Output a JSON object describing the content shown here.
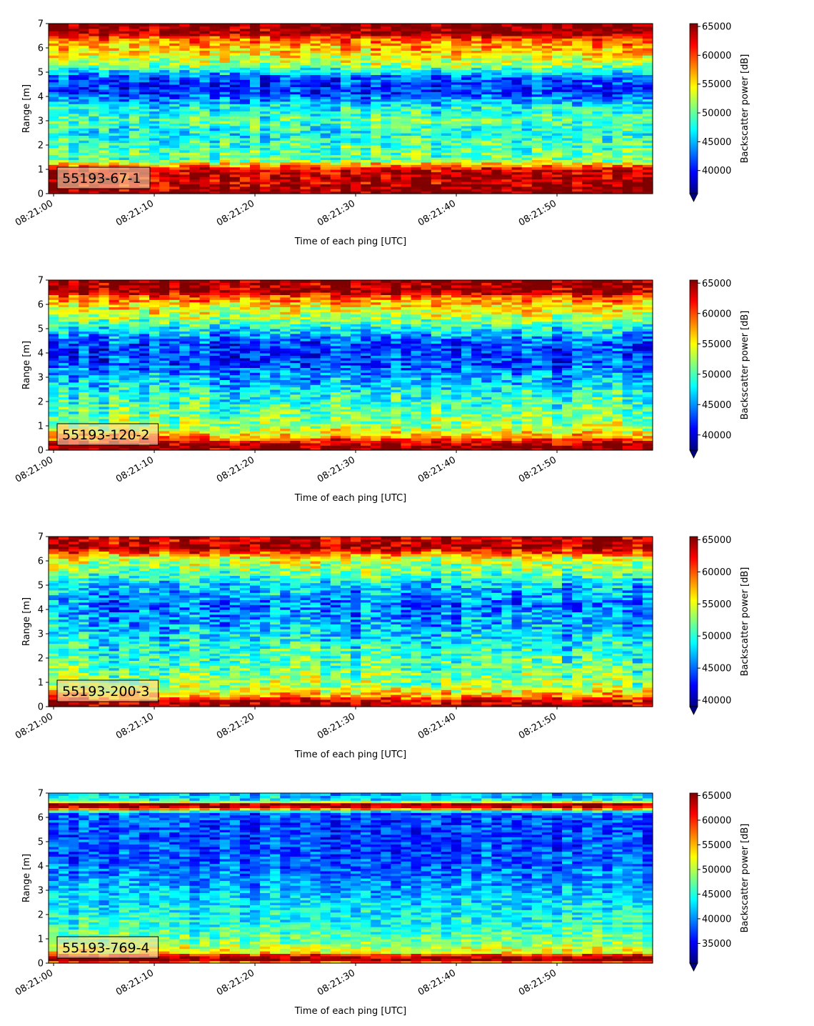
{
  "chart_data": [
    {
      "type": "heatmap",
      "label": "55193-67-1",
      "xlabel": "Time of each ping [UTC]",
      "ylabel": "Range [m]",
      "xlim": [
        "08:21:00",
        "08:21:59"
      ],
      "ylim": [
        0,
        7
      ],
      "xticks": [
        "08:21:00",
        "08:21:10",
        "08:21:20",
        "08:21:30",
        "08:21:40",
        "08:21:50"
      ],
      "yticks": [
        0,
        1,
        2,
        3,
        4,
        5,
        6,
        7
      ],
      "colorbar": {
        "label": "Backscatter power [dB]",
        "vmin": 36000,
        "vmax": 65500,
        "extend": "min",
        "ticks": [
          40000,
          45000,
          50000,
          55000,
          60000,
          65000
        ]
      },
      "colormap": "jet",
      "profile": [
        [
          0.0,
          65500
        ],
        [
          0.25,
          64000
        ],
        [
          1.0,
          63000
        ],
        [
          1.15,
          58000
        ],
        [
          1.4,
          50000
        ],
        [
          2.0,
          49000
        ],
        [
          2.5,
          47000
        ],
        [
          3.0,
          49500
        ],
        [
          3.6,
          47000
        ],
        [
          4.2,
          40500
        ],
        [
          4.8,
          42000
        ],
        [
          5.3,
          51500
        ],
        [
          5.8,
          55000
        ],
        [
          6.3,
          58000
        ],
        [
          6.5,
          61500
        ],
        [
          6.6,
          64500
        ],
        [
          7.0,
          65500
        ]
      ],
      "grid": false
    },
    {
      "type": "heatmap",
      "label": "55193-120-2",
      "xlabel": "Time of each ping [UTC]",
      "ylabel": "Range [m]",
      "xlim": [
        "08:21:00",
        "08:21:59"
      ],
      "ylim": [
        0,
        7
      ],
      "xticks": [
        "08:21:00",
        "08:21:10",
        "08:21:20",
        "08:21:30",
        "08:21:40",
        "08:21:50"
      ],
      "yticks": [
        0,
        1,
        2,
        3,
        4,
        5,
        6,
        7
      ],
      "colorbar": {
        "label": "Backscatter power [dB]",
        "vmin": 37500,
        "vmax": 65500,
        "extend": "min",
        "ticks": [
          40000,
          45000,
          50000,
          55000,
          60000,
          65000
        ]
      },
      "colormap": "jet",
      "profile": [
        [
          0.0,
          65500
        ],
        [
          0.3,
          64000
        ],
        [
          0.55,
          58000
        ],
        [
          0.9,
          53000
        ],
        [
          1.5,
          51000
        ],
        [
          2.2,
          49000
        ],
        [
          3.0,
          46000
        ],
        [
          3.6,
          43000
        ],
        [
          4.3,
          42500
        ],
        [
          4.9,
          47000
        ],
        [
          5.5,
          53000
        ],
        [
          6.0,
          56000
        ],
        [
          6.35,
          60000
        ],
        [
          6.5,
          64500
        ],
        [
          7.0,
          65000
        ]
      ],
      "grid": false
    },
    {
      "type": "heatmap",
      "label": "55193-200-3",
      "xlabel": "Time of each ping [UTC]",
      "ylabel": "Range [m]",
      "xlim": [
        "08:21:00",
        "08:21:59"
      ],
      "ylim": [
        0,
        7
      ],
      "xticks": [
        "08:21:00",
        "08:21:10",
        "08:21:20",
        "08:21:30",
        "08:21:40",
        "08:21:50"
      ],
      "yticks": [
        0,
        1,
        2,
        3,
        4,
        5,
        6,
        7
      ],
      "colorbar": {
        "label": "Backscatter power [dB]",
        "vmin": 39000,
        "vmax": 65500,
        "extend": "min",
        "ticks": [
          40000,
          45000,
          50000,
          55000,
          60000,
          65000
        ]
      },
      "colormap": "jet",
      "profile": [
        [
          0.0,
          65500
        ],
        [
          0.25,
          63000
        ],
        [
          0.45,
          58000
        ],
        [
          0.9,
          53000
        ],
        [
          1.6,
          51500
        ],
        [
          2.5,
          49500
        ],
        [
          3.4,
          47000
        ],
        [
          4.2,
          45000
        ],
        [
          5.0,
          48000
        ],
        [
          5.6,
          52000
        ],
        [
          6.1,
          54500
        ],
        [
          6.4,
          61000
        ],
        [
          6.55,
          64500
        ],
        [
          7.0,
          63000
        ]
      ],
      "grid": false
    },
    {
      "type": "heatmap",
      "label": "55193-769-4",
      "xlabel": "Time of each ping [UTC]",
      "ylabel": "Range [m]",
      "xlim": [
        "08:21:00",
        "08:21:59"
      ],
      "ylim": [
        0,
        7
      ],
      "xticks": [
        "08:21:00",
        "08:21:10",
        "08:21:20",
        "08:21:30",
        "08:21:40",
        "08:21:50"
      ],
      "yticks": [
        0,
        1,
        2,
        3,
        4,
        5,
        6,
        7
      ],
      "colorbar": {
        "label": "Backscatter power [dB]",
        "vmin": 31000,
        "vmax": 65500,
        "extend": "min",
        "ticks": [
          35000,
          40000,
          45000,
          50000,
          55000,
          60000,
          65000
        ]
      },
      "colormap": "jet",
      "profile": [
        [
          0.0,
          55000
        ],
        [
          0.15,
          65000
        ],
        [
          0.3,
          63000
        ],
        [
          0.45,
          53000
        ],
        [
          0.9,
          48000
        ],
        [
          1.5,
          45500
        ],
        [
          2.5,
          43000
        ],
        [
          3.5,
          40000
        ],
        [
          4.5,
          38000
        ],
        [
          5.5,
          37500
        ],
        [
          6.2,
          38500
        ],
        [
          6.4,
          62000
        ],
        [
          6.55,
          64500
        ],
        [
          6.7,
          44000
        ],
        [
          7.0,
          41000
        ]
      ],
      "grid": false
    }
  ]
}
